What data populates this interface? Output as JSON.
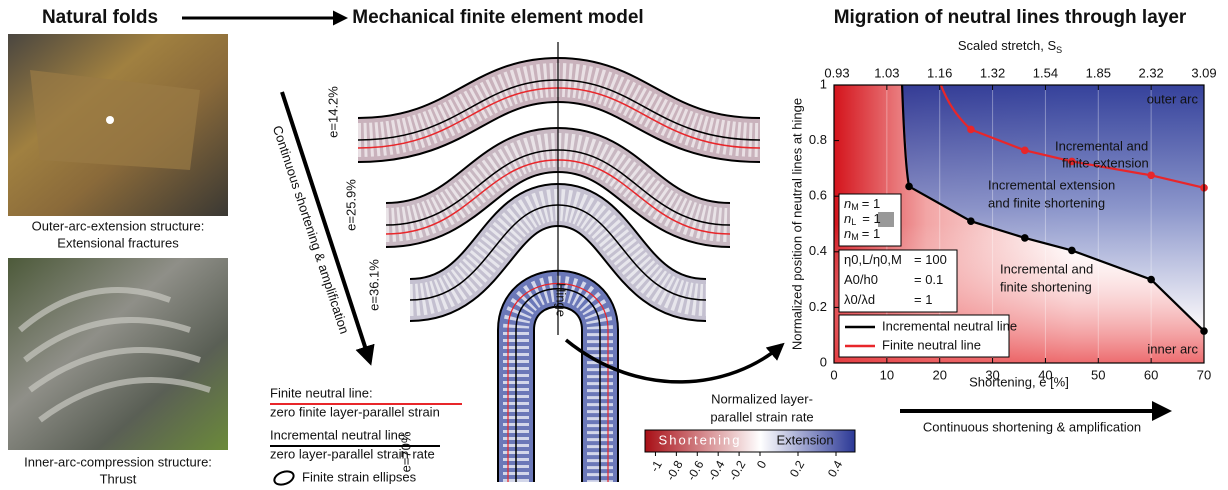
{
  "header": {
    "left": "Natural folds",
    "middle": "Mechanical finite element model"
  },
  "photos": [
    {
      "caption": [
        "Outer-arc-extension structure:",
        "Extensional fractures"
      ]
    },
    {
      "caption": [
        "Inner-arc-compression structure:",
        "Thrust"
      ]
    }
  ],
  "model": {
    "arrow_label": "Continuous shortening & amplification",
    "stages": [
      "e=14.2%",
      "e=25.9%",
      "e=36.1%",
      "e=70%"
    ],
    "hinge": "Hinge"
  },
  "legend": {
    "finite": [
      "Finite neutral line:",
      "zero finite layer-parallel strain"
    ],
    "incremental": [
      "Incremental neutral line:",
      "zero layer-parallel strain rate"
    ],
    "ellipses": "Finite strain ellipses"
  },
  "colorbar": {
    "title": [
      "Normalized layer-",
      "parallel strain rate"
    ],
    "left_label": "Shortening",
    "right_label": "Extension",
    "clim": [
      -1.1,
      0.5
    ],
    "ticks": [
      -1,
      -0.8,
      -0.6,
      -0.4,
      -0.2,
      0,
      0.2,
      0.4
    ]
  },
  "chart_data": {
    "type": "line",
    "title": "Migration of neutral lines through layer",
    "x2label": "Scaled stretch, S",
    "x2label_sub": "S",
    "xlabel": "Shortening, e [%]",
    "ylabel": "Normalized position of neutral lines at hinge",
    "xlim": [
      0,
      70
    ],
    "xticks": [
      0,
      10,
      20,
      30,
      40,
      50,
      60,
      70
    ],
    "x2ticks": [
      {
        "value": 0,
        "label": "0.93"
      },
      {
        "value": 10,
        "label": "1.03"
      },
      {
        "value": 20,
        "label": "1.16"
      },
      {
        "value": 30,
        "label": "1.32"
      },
      {
        "value": 40,
        "label": "1.54"
      },
      {
        "value": 50,
        "label": "1.85"
      },
      {
        "value": 60,
        "label": "2.32"
      },
      {
        "value": 70,
        "label": "3.09"
      }
    ],
    "ylim": [
      0,
      1
    ],
    "yticks": [
      0,
      0.2,
      0.4,
      0.6,
      0.8,
      1
    ],
    "grid": true,
    "series": [
      {
        "name": "Incremental neutral line",
        "color": "#000000",
        "x": [
          14.2,
          25.9,
          36.1,
          45,
          60,
          70
        ],
        "values": [
          0.635,
          0.51,
          0.45,
          0.405,
          0.3,
          0.115
        ]
      },
      {
        "name": "Finite neutral line",
        "color": "#e8262a",
        "x": [
          25.9,
          36.1,
          45,
          60,
          70
        ],
        "values": [
          0.84,
          0.765,
          0.725,
          0.675,
          0.63
        ]
      }
    ],
    "annotations": [
      "outer arc",
      "inner arc",
      "Incremental and",
      "finite extension",
      "Incremental extension",
      "and finite shortening",
      "Incremental and",
      "finite shortening"
    ],
    "materials": [
      {
        "sym": "n",
        "sub": "M",
        "val": "= 1"
      },
      {
        "sym": "n",
        "sub": "L",
        "val": "= 1"
      },
      {
        "sym": "n",
        "sub": "M",
        "val": "= 1"
      }
    ],
    "params": [
      {
        "sym": "η0,L/η0,M",
        "val": "= 100"
      },
      {
        "sym": "A0/h0",
        "val": "= 0.1"
      },
      {
        "sym": "λ0/λd",
        "val": "= 1"
      }
    ],
    "footer": "Continuous shortening & amplification"
  }
}
